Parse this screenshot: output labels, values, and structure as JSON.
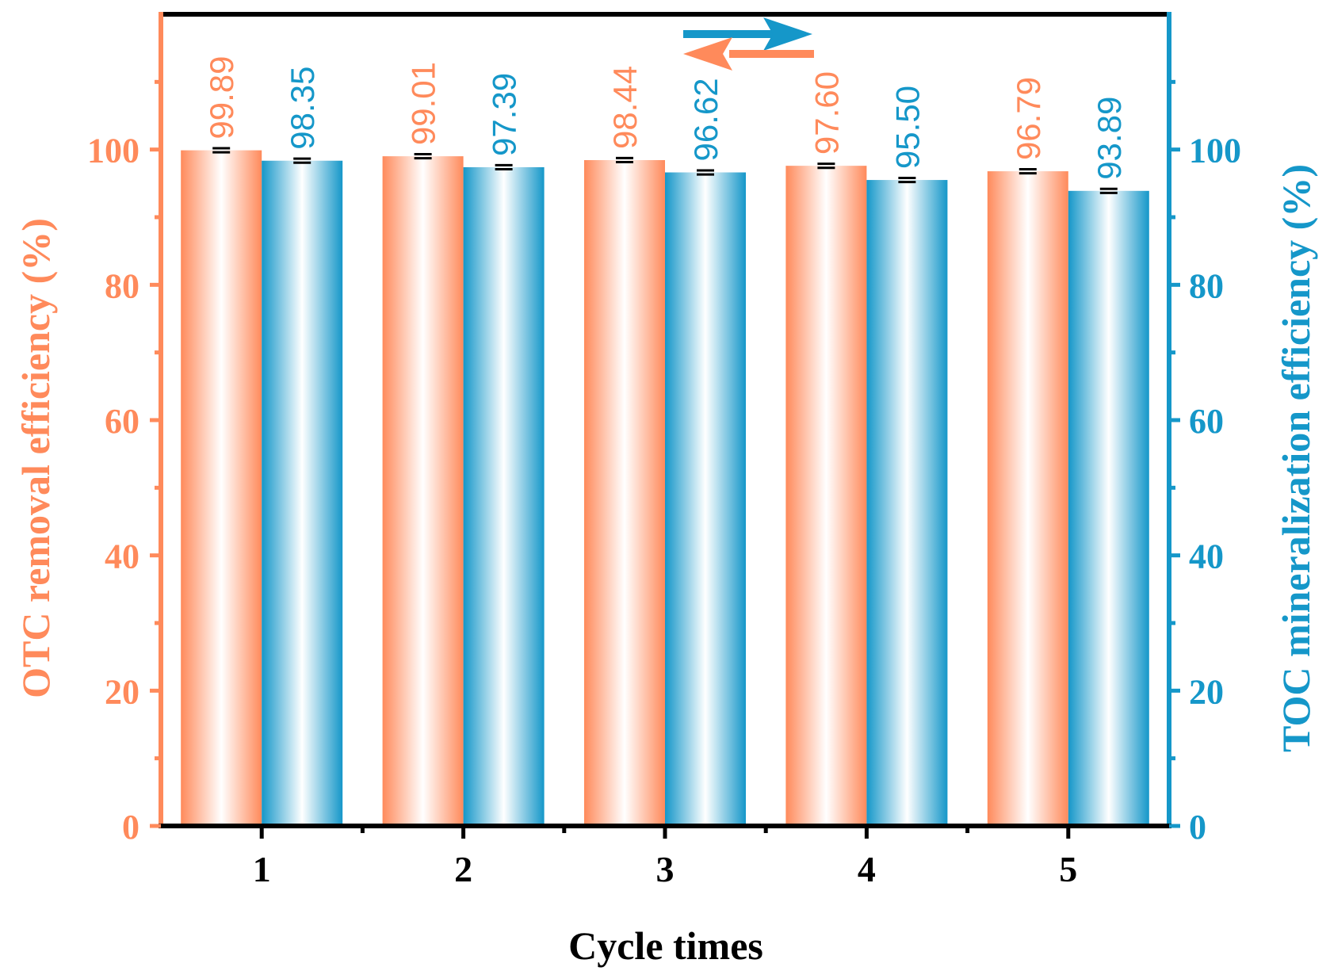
{
  "chart_data": {
    "type": "bar",
    "xlabel": "Cycle times",
    "categories": [
      "1",
      "2",
      "3",
      "4",
      "5"
    ],
    "ylim": [
      0,
      120
    ],
    "yticks": [
      "0",
      "20",
      "40",
      "60",
      "80",
      "100"
    ],
    "y2label": "TOC mineralization efficiency (%)",
    "ylabel": "OTC removal efficiency (%)",
    "series": [
      {
        "name": "OTC removal efficiency (%)",
        "axis": "left",
        "color": "#ff8a5b",
        "values": [
          99.89,
          99.01,
          98.44,
          97.6,
          96.79
        ],
        "labels": [
          "99.89",
          "99.01",
          "98.44",
          "97.60",
          "96.79"
        ],
        "errors": [
          0.3,
          0.3,
          0.3,
          0.3,
          0.3
        ]
      },
      {
        "name": "TOC mineralization efficiency (%)",
        "axis": "right",
        "color": "#1597c9",
        "values": [
          98.35,
          97.39,
          96.62,
          95.5,
          93.89
        ],
        "labels": [
          "98.35",
          "97.39",
          "96.62",
          "95.50",
          "93.89"
        ],
        "errors": [
          0.3,
          0.3,
          0.3,
          0.3,
          0.3
        ]
      }
    ],
    "annotations": [
      "arrow pointing right (TOC axis)",
      "arrow pointing left (OTC axis)"
    ]
  }
}
